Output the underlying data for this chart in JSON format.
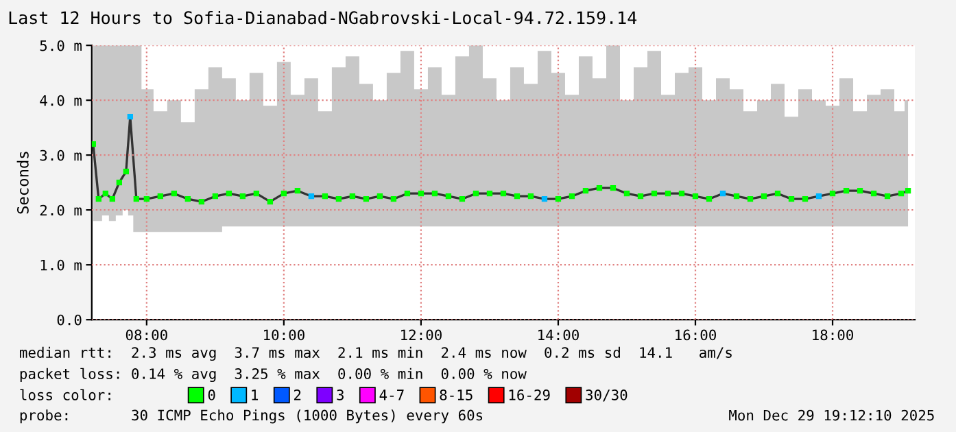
{
  "chart_data": {
    "type": "line",
    "title": "Last 12 Hours to Sofia-Dianabad-NGabrovski-Local-94.72.159.14",
    "ylabel": "Seconds",
    "x": [
      7.22,
      7.3,
      7.4,
      7.5,
      7.6,
      7.7,
      7.76,
      7.85,
      8.0,
      8.2,
      8.4,
      8.6,
      8.8,
      9.0,
      9.2,
      9.4,
      9.6,
      9.8,
      10.0,
      10.2,
      10.4,
      10.6,
      10.8,
      11.0,
      11.2,
      11.4,
      11.6,
      11.8,
      12.0,
      12.2,
      12.4,
      12.6,
      12.8,
      13.0,
      13.2,
      13.4,
      13.6,
      13.8,
      14.0,
      14.2,
      14.4,
      14.6,
      14.8,
      15.0,
      15.2,
      15.4,
      15.6,
      15.8,
      16.0,
      16.2,
      16.4,
      16.6,
      16.8,
      17.0,
      17.2,
      17.4,
      17.6,
      17.8,
      18.0,
      18.2,
      18.4,
      18.6,
      18.8,
      19.0,
      19.1
    ],
    "series": [
      {
        "color": "#333333",
        "marker": "none",
        "values": [
          3.2,
          2.2,
          2.3,
          2.2,
          2.5,
          2.7,
          3.7,
          2.2,
          2.2,
          2.25,
          2.3,
          2.2,
          2.15,
          2.25,
          2.3,
          2.25,
          2.3,
          2.15,
          2.3,
          2.35,
          2.25,
          2.25,
          2.2,
          2.25,
          2.2,
          2.25,
          2.2,
          2.3,
          2.3,
          2.3,
          2.25,
          2.2,
          2.3,
          2.3,
          2.3,
          2.25,
          2.25,
          2.2,
          2.2,
          2.25,
          2.35,
          2.4,
          2.4,
          2.3,
          2.25,
          2.3,
          2.3,
          2.3,
          2.25,
          2.2,
          2.3,
          2.25,
          2.2,
          2.25,
          2.3,
          2.2,
          2.2,
          2.25,
          2.3,
          2.35,
          2.35,
          2.3,
          2.25,
          2.3,
          2.35
        ],
        "lower": [
          1.8,
          1.8,
          1.9,
          1.8,
          1.9,
          2.0,
          1.9,
          1.6,
          1.6,
          1.6,
          1.6,
          1.6,
          1.6,
          1.6,
          1.7,
          1.7,
          1.7,
          1.7,
          1.7,
          1.7,
          1.7,
          1.7,
          1.7,
          1.7,
          1.7,
          1.7,
          1.7,
          1.7,
          1.7,
          1.7,
          1.7,
          1.7,
          1.7,
          1.7,
          1.7,
          1.7,
          1.7,
          1.7,
          1.7,
          1.7,
          1.7,
          1.7,
          1.7,
          1.7,
          1.7,
          1.7,
          1.7,
          1.7,
          1.7,
          1.7,
          1.7,
          1.7,
          1.7,
          1.7,
          1.7,
          1.7,
          1.7,
          1.7,
          1.7,
          1.7,
          1.7,
          1.7,
          1.7,
          1.7,
          1.7
        ],
        "upper": [
          5.0,
          5.0,
          5.0,
          5.0,
          5.0,
          5.0,
          5.0,
          5.0,
          4.2,
          3.8,
          4.0,
          3.6,
          4.2,
          4.6,
          4.4,
          4.0,
          4.5,
          3.9,
          4.7,
          4.1,
          4.4,
          3.8,
          4.6,
          4.8,
          4.3,
          4.0,
          4.5,
          4.9,
          4.2,
          4.6,
          4.1,
          4.8,
          5.0,
          4.4,
          4.0,
          4.6,
          4.3,
          4.9,
          4.5,
          4.1,
          4.8,
          4.4,
          5.0,
          4.0,
          4.6,
          4.9,
          4.1,
          4.5,
          4.6,
          4.0,
          4.4,
          4.2,
          3.8,
          4.0,
          4.3,
          3.7,
          4.2,
          4.0,
          3.9,
          4.4,
          3.8,
          4.1,
          4.2,
          3.8,
          4.0
        ]
      },
      {
        "type": "scatter",
        "name": "0",
        "color": "#00ff00",
        "values": [
          3.2,
          2.2,
          2.3,
          2.2,
          2.5,
          2.7,
          null,
          2.2,
          2.2,
          2.25,
          2.3,
          2.2,
          2.15,
          2.25,
          2.3,
          2.25,
          2.3,
          2.15,
          2.3,
          2.35,
          null,
          2.25,
          2.2,
          2.25,
          2.2,
          2.25,
          2.2,
          2.3,
          2.3,
          2.3,
          2.25,
          2.2,
          2.3,
          2.3,
          2.3,
          2.25,
          2.25,
          null,
          2.2,
          2.25,
          2.35,
          2.4,
          2.4,
          2.3,
          2.25,
          2.3,
          2.3,
          2.3,
          2.25,
          2.2,
          null,
          2.25,
          2.2,
          2.25,
          2.3,
          2.2,
          2.2,
          null,
          2.3,
          2.35,
          2.35,
          2.3,
          2.25,
          2.3,
          2.35
        ]
      },
      {
        "type": "scatter",
        "name": "1",
        "color": "#00b8ff",
        "values": [
          null,
          null,
          null,
          null,
          null,
          null,
          3.7,
          null,
          null,
          null,
          null,
          null,
          null,
          null,
          null,
          null,
          null,
          null,
          null,
          null,
          2.25,
          null,
          null,
          null,
          null,
          null,
          null,
          null,
          null,
          null,
          null,
          null,
          null,
          null,
          null,
          null,
          null,
          2.2,
          null,
          null,
          null,
          null,
          null,
          null,
          null,
          null,
          null,
          null,
          null,
          null,
          2.3,
          null,
          null,
          null,
          null,
          null,
          null,
          2.25,
          null,
          null,
          null,
          null,
          null,
          null,
          null
        ]
      },
      {
        "type": "scatter",
        "name": "2",
        "color": "#0059ff",
        "values": [
          null,
          null,
          null,
          null,
          null,
          null,
          null,
          null,
          null,
          null,
          null,
          null,
          null,
          null,
          null,
          null,
          null,
          null,
          null,
          null,
          null,
          null,
          null,
          null,
          null,
          null,
          null,
          null,
          null,
          null,
          null,
          null,
          null,
          null,
          null,
          null,
          null,
          null,
          null,
          null,
          null,
          null,
          null,
          null,
          null,
          null,
          null,
          null,
          null,
          null,
          null,
          null,
          null,
          null,
          null,
          null,
          null,
          null,
          null,
          null,
          null,
          null,
          null,
          null,
          null
        ]
      },
      {
        "type": "scatter",
        "name": "3",
        "color": "#7e00ff",
        "values": [
          null,
          null,
          null,
          null,
          null,
          null,
          null,
          null,
          null,
          null,
          null,
          null,
          null,
          null,
          null,
          null,
          null,
          null,
          null,
          null,
          null,
          null,
          null,
          null,
          null,
          null,
          null,
          null,
          null,
          null,
          null,
          null,
          null,
          null,
          null,
          null,
          null,
          null,
          null,
          null,
          null,
          null,
          null,
          null,
          null,
          null,
          null,
          null,
          null,
          null,
          null,
          null,
          null,
          null,
          null,
          null,
          null,
          null,
          null,
          null,
          null,
          null,
          null,
          null,
          null
        ]
      },
      {
        "type": "scatter",
        "name": "4-7",
        "color": "#ff00ff",
        "values": [
          null,
          null,
          null,
          null,
          null,
          null,
          null,
          null,
          null,
          null,
          null,
          null,
          null,
          null,
          null,
          null,
          null,
          null,
          null,
          null,
          null,
          null,
          null,
          null,
          null,
          null,
          null,
          null,
          null,
          null,
          null,
          null,
          null,
          null,
          null,
          null,
          null,
          null,
          null,
          null,
          null,
          null,
          null,
          null,
          null,
          null,
          null,
          null,
          null,
          null,
          null,
          null,
          null,
          null,
          null,
          null,
          null,
          null,
          null,
          null,
          null,
          null,
          null,
          null,
          null
        ]
      },
      {
        "type": "scatter",
        "name": "8-15",
        "color": "#ff5500",
        "values": [
          null,
          null,
          null,
          null,
          null,
          null,
          null,
          null,
          null,
          null,
          null,
          null,
          null,
          null,
          null,
          null,
          null,
          null,
          null,
          null,
          null,
          null,
          null,
          null,
          null,
          null,
          null,
          null,
          null,
          null,
          null,
          null,
          null,
          null,
          null,
          null,
          null,
          null,
          null,
          null,
          null,
          null,
          null,
          null,
          null,
          null,
          null,
          null,
          null,
          null,
          null,
          null,
          null,
          null,
          null,
          null,
          null,
          null,
          null,
          null,
          null,
          null,
          null,
          null,
          null
        ]
      },
      {
        "type": "scatter",
        "name": "16-29",
        "color": "#ff0000",
        "values": [
          null,
          null,
          null,
          null,
          null,
          null,
          null,
          null,
          null,
          null,
          null,
          null,
          null,
          null,
          null,
          null,
          null,
          null,
          null,
          null,
          null,
          null,
          null,
          null,
          null,
          null,
          null,
          null,
          null,
          null,
          null,
          null,
          null,
          null,
          null,
          null,
          null,
          null,
          null,
          null,
          null,
          null,
          null,
          null,
          null,
          null,
          null,
          null,
          null,
          null,
          null,
          null,
          null,
          null,
          null,
          null,
          null,
          null,
          null,
          null,
          null,
          null,
          null,
          null,
          null
        ]
      },
      {
        "type": "scatter",
        "name": "30/30",
        "color": "#a10000",
        "values": [
          null,
          null,
          null,
          null,
          null,
          null,
          null,
          null,
          null,
          null,
          null,
          null,
          null,
          null,
          null,
          null,
          null,
          null,
          null,
          null,
          null,
          null,
          null,
          null,
          null,
          null,
          null,
          null,
          null,
          null,
          null,
          null,
          null,
          null,
          null,
          null,
          null,
          null,
          null,
          null,
          null,
          null,
          null,
          null,
          null,
          null,
          null,
          null,
          null,
          null,
          null,
          null,
          null,
          null,
          null,
          null,
          null,
          null,
          null,
          null,
          null,
          null,
          null,
          null,
          null
        ]
      }
    ],
    "xlim": [
      7.2,
      19.2
    ],
    "xticks": [
      {
        "value": 8,
        "label": "08:00"
      },
      {
        "value": 10,
        "label": "10:00"
      },
      {
        "value": 12,
        "label": "12:00"
      },
      {
        "value": 14,
        "label": "14:00"
      },
      {
        "value": 16,
        "label": "16:00"
      },
      {
        "value": 18,
        "label": "18:00"
      }
    ],
    "ylim": [
      0,
      5
    ],
    "yticks": [
      {
        "value": 0,
        "label": "0.0"
      },
      {
        "value": 1,
        "label": "1.0 m"
      },
      {
        "value": 2,
        "label": "2.0 m"
      },
      {
        "value": 3,
        "label": "3.0 m"
      },
      {
        "value": 4,
        "label": "4.0 m"
      },
      {
        "value": 5,
        "label": "5.0 m"
      }
    ],
    "grid": true,
    "marker": "square",
    "legend": "bottom",
    "annotations": [
      "median rtt:  2.3 ms avg  3.7 ms max  2.1 ms min  2.4 ms now  0.2 ms sd  14.1   am/s",
      "packet loss: 0.14 % avg  3.25 % max  0.00 % min  0.00 % now",
      "loss color:",
      "probe:       30 ICMP Echo Pings (1000 Bytes) every 60s",
      "Mon Dec 29 19:12:10 2025"
    ]
  }
}
